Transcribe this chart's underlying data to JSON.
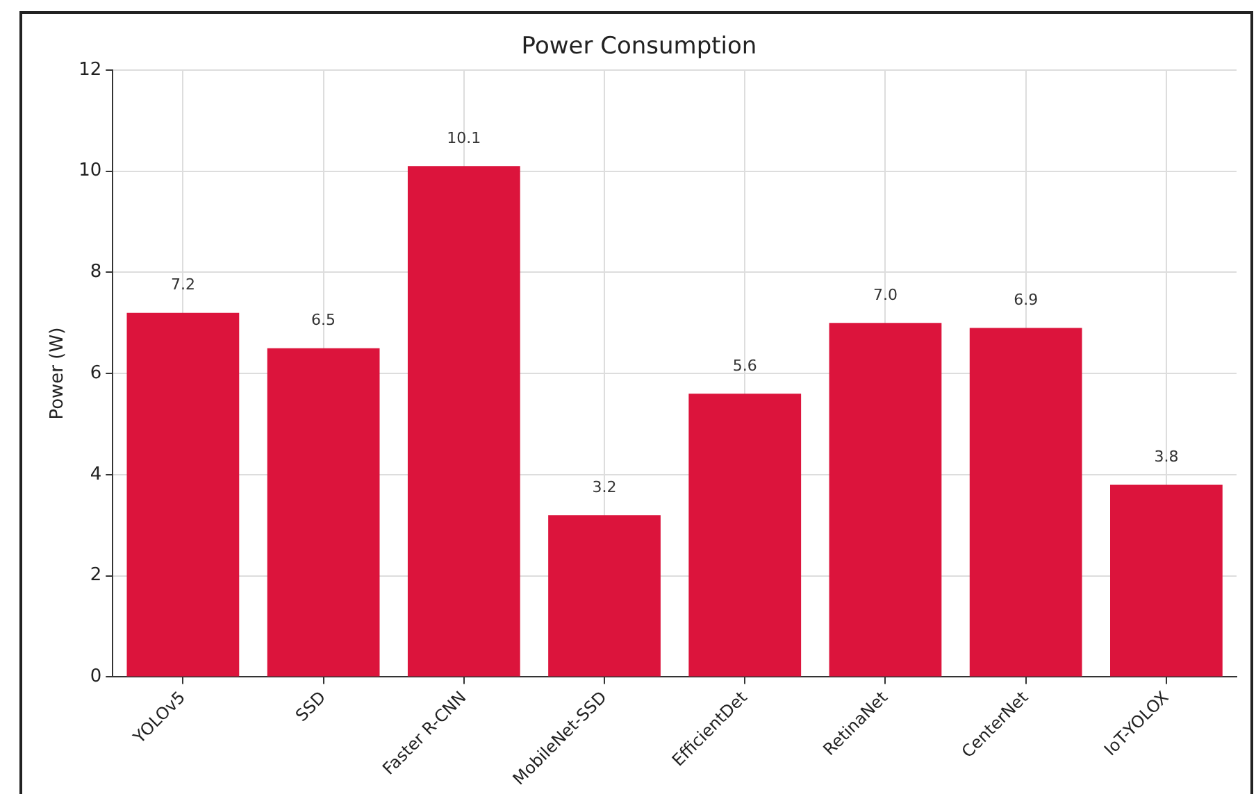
{
  "chart_data": {
    "type": "bar",
    "title": "Power Consumption",
    "ylabel": "Power (W)",
    "categories": [
      "YOLOv5",
      "SSD",
      "Faster R-CNN",
      "MobileNet-SSD",
      "EfficientDet",
      "RetinaNet",
      "CenterNet",
      "IoT-YOLOX"
    ],
    "values": [
      7.2,
      6.5,
      10.1,
      3.2,
      5.6,
      7.0,
      6.9,
      3.8
    ],
    "value_labels": [
      "7.2",
      "6.5",
      "10.1",
      "3.2",
      "5.6",
      "7.0",
      "6.9",
      "3.8"
    ],
    "color": "#dc143c",
    "ylim": [
      0,
      12
    ],
    "yticks": [
      0,
      2,
      4,
      6,
      8,
      10,
      12
    ],
    "grid": true,
    "legend": false
  }
}
